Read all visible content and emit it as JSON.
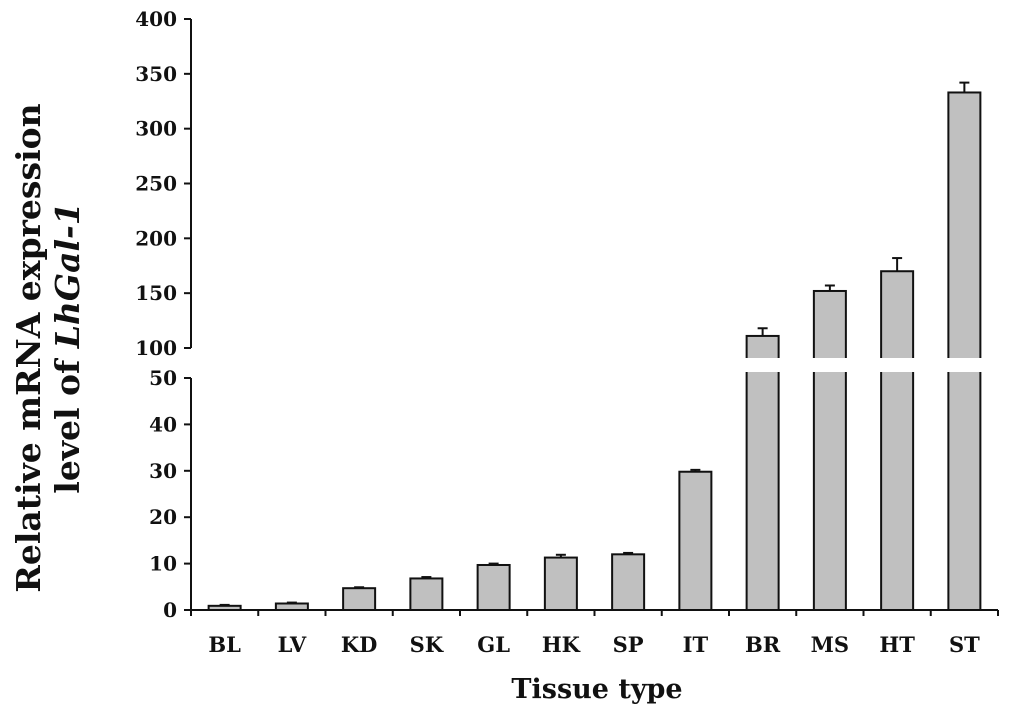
{
  "chart_data": {
    "type": "bar",
    "categories": [
      "BL",
      "LV",
      "KD",
      "SK",
      "GL",
      "HK",
      "SP",
      "IT",
      "BR",
      "MS",
      "HT",
      "ST"
    ],
    "values": [
      0.9,
      1.4,
      4.7,
      6.8,
      9.7,
      11.3,
      12.0,
      29.8,
      111,
      152,
      170,
      333
    ],
    "errors": [
      0.2,
      0.2,
      0.2,
      0.3,
      0.3,
      0.6,
      0.3,
      0.4,
      7,
      5,
      12,
      9
    ],
    "xlabel": "Tissue type",
    "ylabel_line1": "Relative mRNA expression",
    "ylabel_line2_prefix": "level of ",
    "ylabel_line2_gene": "LhGal-1",
    "axis_break": true,
    "lower_ylim": [
      0,
      50
    ],
    "upper_ylim": [
      100,
      400
    ],
    "lower_ticks": [
      "0",
      "10",
      "20",
      "30",
      "40",
      "50"
    ],
    "upper_ticks": [
      "100",
      "150",
      "200",
      "250",
      "300",
      "350",
      "400"
    ],
    "bar_color": "#c0c0c0",
    "grid": false,
    "legend": "none"
  }
}
